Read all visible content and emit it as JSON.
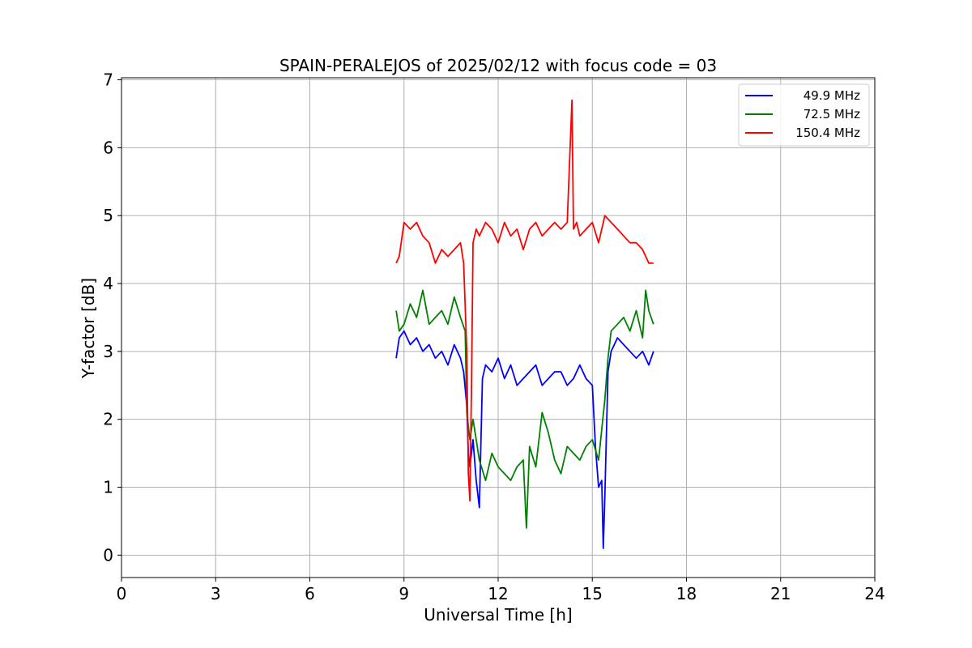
{
  "chart_data": {
    "type": "line",
    "title": "SPAIN-PERALEJOS of 2025/02/12 with focus code = 03",
    "xlabel": "Universal Time [h]",
    "ylabel": "Y-factor [dB]",
    "xlim": [
      0,
      24
    ],
    "ylim": [
      -0.33,
      7.03
    ],
    "xticks": [
      0,
      3,
      6,
      9,
      12,
      15,
      18,
      21,
      24
    ],
    "yticks": [
      0,
      1,
      2,
      3,
      4,
      5,
      6,
      7
    ],
    "grid": true,
    "legend_position": "top-right",
    "series": [
      {
        "name": "49.9 MHz",
        "color": "#0000ff",
        "x": [
          8.75,
          8.85,
          9.0,
          9.2,
          9.4,
          9.6,
          9.8,
          10.0,
          10.2,
          10.4,
          10.6,
          10.8,
          10.9,
          11.0,
          11.05,
          11.1,
          11.2,
          11.3,
          11.4,
          11.5,
          11.6,
          11.8,
          12.0,
          12.2,
          12.4,
          12.6,
          12.8,
          13.0,
          13.2,
          13.4,
          13.6,
          13.8,
          14.0,
          14.2,
          14.4,
          14.6,
          14.8,
          15.0,
          15.1,
          15.2,
          15.3,
          15.35,
          15.4,
          15.5,
          15.6,
          15.8,
          16.0,
          16.2,
          16.4,
          16.6,
          16.8,
          16.95
        ],
        "values": [
          2.9,
          3.2,
          3.3,
          3.1,
          3.2,
          3.0,
          3.1,
          2.9,
          3.0,
          2.8,
          3.1,
          2.9,
          2.7,
          2.2,
          1.5,
          1.3,
          1.7,
          1.1,
          0.7,
          2.6,
          2.8,
          2.7,
          2.9,
          2.6,
          2.8,
          2.5,
          2.6,
          2.7,
          2.8,
          2.5,
          2.6,
          2.7,
          2.7,
          2.5,
          2.6,
          2.8,
          2.6,
          2.5,
          1.6,
          1.0,
          1.1,
          0.1,
          0.9,
          2.7,
          3.0,
          3.2,
          3.1,
          3.0,
          2.9,
          3.0,
          2.8,
          3.0
        ]
      },
      {
        "name": "72.5 MHz",
        "color": "#008000",
        "x": [
          8.75,
          8.85,
          9.0,
          9.2,
          9.4,
          9.6,
          9.8,
          10.0,
          10.2,
          10.4,
          10.6,
          10.8,
          10.95,
          11.0,
          11.1,
          11.2,
          11.4,
          11.6,
          11.8,
          12.0,
          12.2,
          12.4,
          12.6,
          12.8,
          12.9,
          13.0,
          13.2,
          13.4,
          13.6,
          13.8,
          14.0,
          14.2,
          14.4,
          14.6,
          14.8,
          15.0,
          15.2,
          15.4,
          15.5,
          15.6,
          15.8,
          16.0,
          16.2,
          16.4,
          16.5,
          16.6,
          16.7,
          16.8,
          16.95
        ],
        "values": [
          3.6,
          3.3,
          3.4,
          3.7,
          3.5,
          3.9,
          3.4,
          3.5,
          3.6,
          3.4,
          3.8,
          3.5,
          3.3,
          2.1,
          1.7,
          2.0,
          1.4,
          1.1,
          1.5,
          1.3,
          1.2,
          1.1,
          1.3,
          1.4,
          0.4,
          1.6,
          1.3,
          2.1,
          1.8,
          1.4,
          1.2,
          1.6,
          1.5,
          1.4,
          1.6,
          1.7,
          1.4,
          2.3,
          2.9,
          3.3,
          3.4,
          3.5,
          3.3,
          3.6,
          3.4,
          3.2,
          3.9,
          3.6,
          3.4
        ]
      },
      {
        "name": "150.4 MHz",
        "color": "#ff0000",
        "x": [
          8.75,
          8.85,
          9.0,
          9.2,
          9.4,
          9.6,
          9.8,
          10.0,
          10.2,
          10.4,
          10.6,
          10.8,
          10.9,
          11.0,
          11.05,
          11.1,
          11.15,
          11.2,
          11.3,
          11.4,
          11.6,
          11.8,
          12.0,
          12.2,
          12.4,
          12.6,
          12.8,
          13.0,
          13.2,
          13.4,
          13.6,
          13.8,
          14.0,
          14.2,
          14.35,
          14.4,
          14.5,
          14.6,
          14.8,
          15.0,
          15.2,
          15.4,
          15.6,
          15.8,
          16.0,
          16.2,
          16.4,
          16.6,
          16.8,
          16.95
        ],
        "values": [
          4.3,
          4.4,
          4.9,
          4.8,
          4.9,
          4.7,
          4.6,
          4.3,
          4.5,
          4.4,
          4.5,
          4.6,
          4.3,
          3.0,
          1.2,
          0.8,
          2.5,
          4.6,
          4.8,
          4.7,
          4.9,
          4.8,
          4.6,
          4.9,
          4.7,
          4.8,
          4.5,
          4.8,
          4.9,
          4.7,
          4.8,
          4.9,
          4.8,
          4.9,
          6.7,
          4.8,
          4.9,
          4.7,
          4.8,
          4.9,
          4.6,
          5.0,
          4.9,
          4.8,
          4.7,
          4.6,
          4.6,
          4.5,
          4.3,
          4.3
        ]
      }
    ]
  }
}
